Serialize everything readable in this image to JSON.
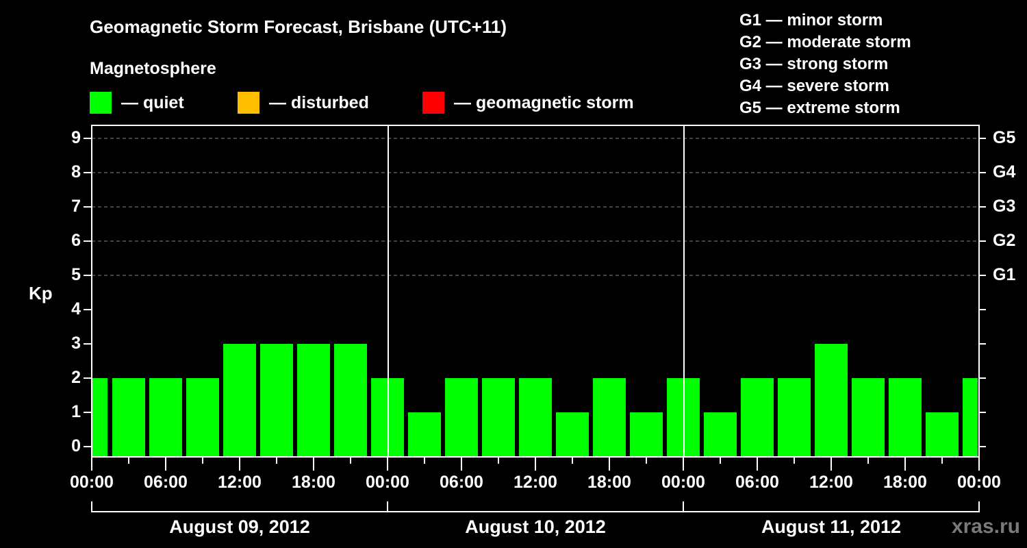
{
  "title": "Geomagnetic Storm Forecast, Brisbane (UTC+11)",
  "subtitle": "Magnetosphere",
  "legend": [
    {
      "label": "— quiet",
      "color": "#00ff00"
    },
    {
      "label": "— disturbed",
      "color": "#ffbf00"
    },
    {
      "label": "— geomagnetic storm",
      "color": "#ff0000"
    }
  ],
  "g_scale": [
    "G1 — minor storm",
    "G2 — moderate storm",
    "G3 — strong storm",
    "G4 — severe storm",
    "G5 — extreme storm"
  ],
  "y_axis_label": "Kp",
  "y_ticks": [
    "0",
    "1",
    "2",
    "3",
    "4",
    "5",
    "6",
    "7",
    "8",
    "9"
  ],
  "right_ticks": [
    "G1",
    "G2",
    "G3",
    "G4",
    "G5"
  ],
  "x_ticks": [
    "00:00",
    "06:00",
    "12:00",
    "18:00",
    "00:00",
    "06:00",
    "12:00",
    "18:00",
    "00:00",
    "06:00",
    "12:00",
    "18:00",
    "00:00"
  ],
  "dates": [
    "August 09, 2012",
    "August 10, 2012",
    "August 11, 2012"
  ],
  "watermark": "xras.ru",
  "chart_data": {
    "type": "bar",
    "title": "Geomagnetic Storm Forecast, Brisbane (UTC+11)",
    "xlabel": "",
    "ylabel": "Kp",
    "ylim": [
      0,
      9
    ],
    "grid": "dashed horizontal at Kp 5-9",
    "legend_position": "top",
    "categories": [
      "Aug 09 00:00 (partial)",
      "Aug 09 01:30",
      "Aug 09 04:30",
      "Aug 09 07:30",
      "Aug 09 10:30",
      "Aug 09 13:30",
      "Aug 09 16:30",
      "Aug 09 19:30",
      "Aug 09 22:30",
      "Aug 10 01:30",
      "Aug 10 04:30",
      "Aug 10 07:30",
      "Aug 10 10:30",
      "Aug 10 13:30",
      "Aug 10 16:30",
      "Aug 10 19:30",
      "Aug 10 22:30",
      "Aug 11 01:30",
      "Aug 11 04:30",
      "Aug 11 07:30",
      "Aug 11 10:30",
      "Aug 11 13:30",
      "Aug 11 16:30",
      "Aug 11 19:30",
      "Aug 11 22:30 (partial)"
    ],
    "values": [
      2,
      2,
      2,
      2,
      3,
      3,
      3,
      3,
      2,
      1,
      2,
      2,
      2,
      1,
      2,
      1,
      2,
      1,
      2,
      2,
      3,
      2,
      2,
      1,
      2
    ],
    "bar_color": "#00ff00",
    "right_axis": {
      "G1": 5,
      "G2": 6,
      "G3": 7,
      "G4": 8,
      "G5": 9
    }
  }
}
